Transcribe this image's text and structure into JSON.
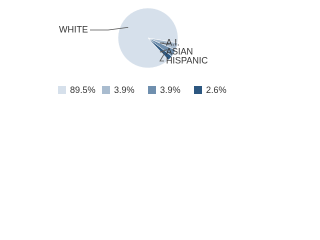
{
  "chart_data": {
    "type": "pie",
    "categories": [
      "WHITE",
      "A.I.",
      "ASIAN",
      "HISPANIC"
    ],
    "values": [
      89.5,
      3.9,
      3.9,
      2.6
    ],
    "value_labels": [
      "89.5%",
      "3.9%",
      "3.9%",
      "2.6%"
    ],
    "colors": [
      "#d6e0eb",
      "#a9bccf",
      "#6f8fae",
      "#2c5780"
    ]
  }
}
